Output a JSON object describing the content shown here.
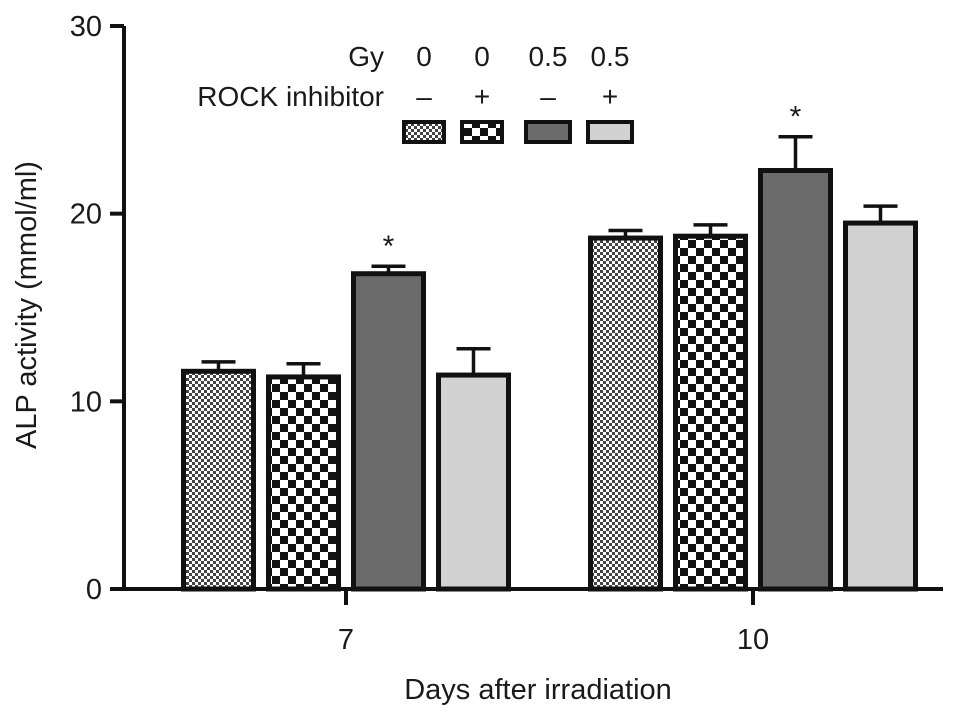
{
  "chart_data": {
    "type": "bar",
    "title": "",
    "xlabel": "Days after irradiation",
    "ylabel": "ALP activity (mmol/ml)",
    "ylim": [
      0,
      30
    ],
    "yticks": [
      0,
      10,
      20,
      30
    ],
    "grid": false,
    "legend_position": "top-center",
    "categories": [
      "7",
      "10"
    ],
    "series": [
      {
        "gy": "0",
        "rock": "–",
        "values": [
          11.6,
          18.7
        ],
        "errors": [
          0.5,
          0.4
        ],
        "significant": [
          false,
          false
        ],
        "fill": "fine-checker",
        "color": "#555555"
      },
      {
        "gy": "0",
        "rock": "+",
        "values": [
          11.3,
          18.8
        ],
        "errors": [
          0.7,
          0.6
        ],
        "significant": [
          false,
          false
        ],
        "fill": "coarse-checker",
        "color": "#111111"
      },
      {
        "gy": "0.5",
        "rock": "–",
        "values": [
          16.8,
          22.3
        ],
        "errors": [
          0.4,
          1.8
        ],
        "significant": [
          true,
          true
        ],
        "fill": "solid",
        "color": "#6b6b6b"
      },
      {
        "gy": "0.5",
        "rock": "+",
        "values": [
          11.4,
          19.5
        ],
        "errors": [
          1.4,
          0.9
        ],
        "significant": [
          false,
          false
        ],
        "fill": "solid",
        "color": "#d2d2d2"
      }
    ],
    "significance_marker": "*",
    "legend": {
      "row1_label": "Gy",
      "row2_label": "ROCK inhibitor"
    }
  }
}
